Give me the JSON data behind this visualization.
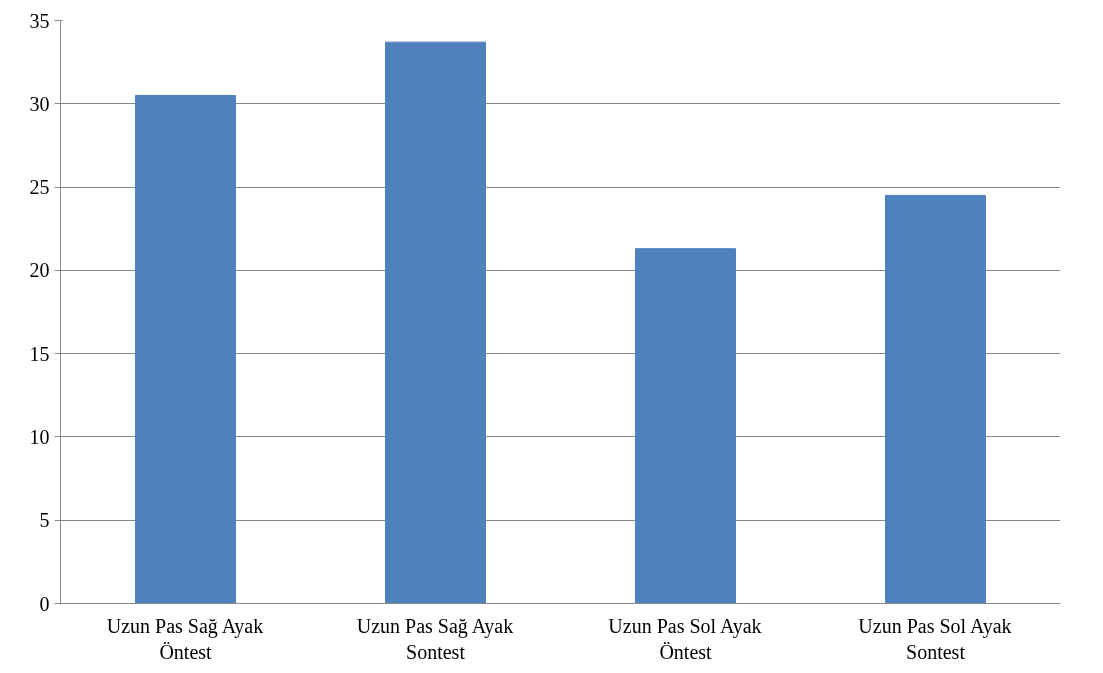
{
  "chart_data": {
    "type": "bar",
    "categories": [
      "Uzun Pas Sağ Ayak Öntest",
      "Uzun Pas Sağ Ayak Sontest",
      "Uzun Pas Sol Ayak Öntest",
      "Uzun Pas Sol Ayak Sontest"
    ],
    "values": [
      30.5,
      33.7,
      21.3,
      24.5
    ],
    "color": "#4f81bd",
    "ylim": [
      0,
      35
    ],
    "yticks": [
      0,
      5,
      10,
      15,
      20,
      25,
      30,
      35
    ],
    "grid": "y"
  }
}
